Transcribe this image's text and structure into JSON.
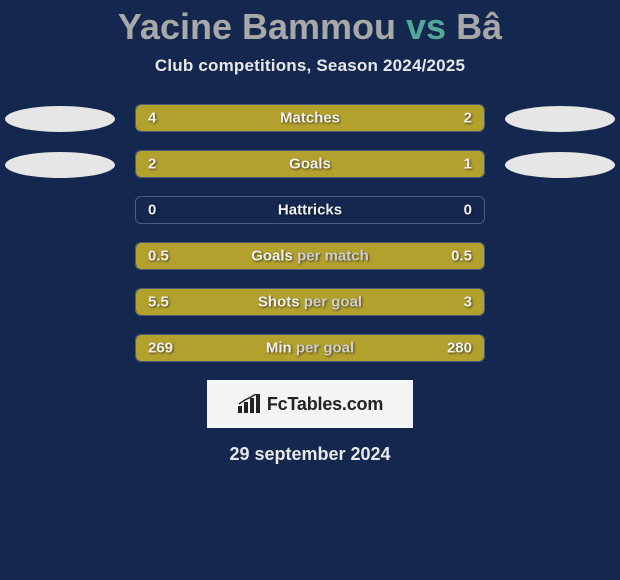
{
  "colors": {
    "background": "#14274e",
    "bar_left": "#b3a12e",
    "bar_right": "#b3a12e",
    "oval": "#e6e6e6",
    "track_border": "rgba(255,255,255,0.25)",
    "title_player": "#a8a8a8",
    "title_vs": "#52a89a",
    "text_light": "#f0f0f0",
    "logo_bg": "#f4f4f4"
  },
  "title": {
    "player1": "Yacine Bammou",
    "vs": "vs",
    "player2": "Bâ"
  },
  "subtitle": "Club competitions, Season 2024/2025",
  "logo_text": "FcTables.com",
  "date": "29 september 2024",
  "rows": [
    {
      "category_w1": "Matches",
      "category_w2": "",
      "left_value": "4",
      "right_value": "2",
      "left_pct": 67,
      "right_pct": 33,
      "show_ovals": true
    },
    {
      "category_w1": "Goals",
      "category_w2": "",
      "left_value": "2",
      "right_value": "1",
      "left_pct": 67,
      "right_pct": 33,
      "show_ovals": true
    },
    {
      "category_w1": "Hattricks",
      "category_w2": "",
      "left_value": "0",
      "right_value": "0",
      "left_pct": 0,
      "right_pct": 0,
      "show_ovals": false
    },
    {
      "category_w1": "Goals",
      "category_w2": "per match",
      "left_value": "0.5",
      "right_value": "0.5",
      "left_pct": 50,
      "right_pct": 50,
      "show_ovals": false
    },
    {
      "category_w1": "Shots",
      "category_w2": "per goal",
      "left_value": "5.5",
      "right_value": "3",
      "left_pct": 50,
      "right_pct": 50,
      "show_ovals": false
    },
    {
      "category_w1": "Min",
      "category_w2": "per goal",
      "left_value": "269",
      "right_value": "280",
      "left_pct": 50,
      "right_pct": 50,
      "show_ovals": false
    }
  ]
}
